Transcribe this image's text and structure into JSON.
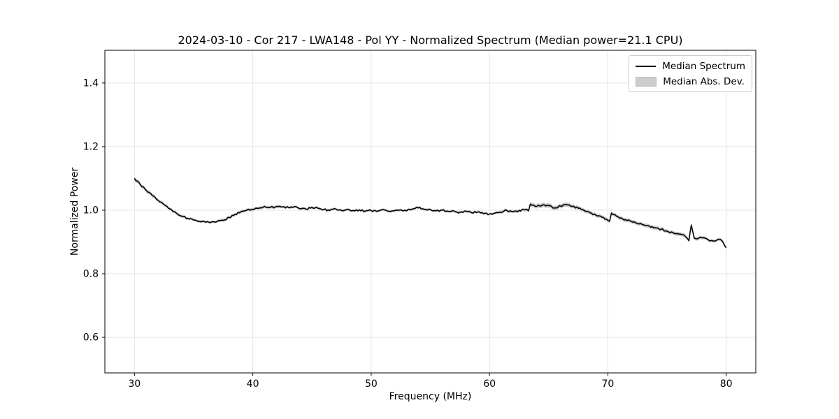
{
  "chart_data": {
    "type": "line",
    "title": "2024-03-10 - Cor 217 - LWA148 - Pol YY - Normalized Spectrum (Median power=21.1 CPU)",
    "xlabel": "Frequency (MHz)",
    "ylabel": "Normalized Power",
    "xlim": [
      27.5,
      82.5
    ],
    "ylim": [
      0.488,
      1.503
    ],
    "grid": true,
    "grid_color": "#e5e5e5",
    "legend_location": "upper right",
    "xticks": {
      "values": [
        30,
        40,
        50,
        60,
        70,
        80
      ],
      "labels": [
        "30",
        "40",
        "50",
        "60",
        "70",
        "80"
      ]
    },
    "yticks": {
      "values": [
        0.6,
        0.8,
        1.0,
        1.2,
        1.4
      ],
      "labels": [
        "0.6",
        "0.8",
        "1.0",
        "1.2",
        "1.4"
      ]
    },
    "noise_amplitude": 0.0028,
    "series": [
      {
        "name": "Median Spectrum",
        "kind": "line",
        "color": "#000000",
        "x": [
          30,
          30.5,
          31,
          31.5,
          32,
          32.5,
          33,
          33.5,
          34,
          34.5,
          35,
          35.5,
          36,
          36.5,
          37,
          37.5,
          38,
          38.5,
          39,
          39.5,
          40,
          40.5,
          41,
          41.5,
          42,
          42.5,
          43,
          43.5,
          44,
          44.5,
          45,
          45.5,
          46,
          46.5,
          47,
          47.5,
          48,
          48.5,
          49,
          49.5,
          50,
          50.5,
          51,
          51.5,
          52,
          52.5,
          53,
          53.5,
          54.1,
          54.5,
          55,
          55.5,
          56,
          56.5,
          57,
          57.5,
          58,
          58.5,
          59,
          59.5,
          60,
          60.5,
          61,
          61.3,
          61.6,
          62,
          62.5,
          63,
          63.3,
          63.45,
          64,
          64.5,
          65,
          65.5,
          66,
          66.5,
          67,
          67.5,
          68,
          68.5,
          69,
          69.5,
          70,
          70.15,
          70.3,
          70.5,
          71,
          71.5,
          72,
          72.5,
          73,
          73.5,
          74,
          74.5,
          75,
          75.5,
          76,
          76.5,
          76.85,
          77.05,
          77.3,
          77.5,
          78,
          78.5,
          79,
          79.5,
          79.75,
          80
        ],
        "y": [
          1.1,
          1.08,
          1.062,
          1.046,
          1.031,
          1.017,
          1.004,
          0.992,
          0.981,
          0.974,
          0.969,
          0.965,
          0.962,
          0.963,
          0.965,
          0.968,
          0.977,
          0.987,
          0.995,
          1.0,
          1.002,
          1.006,
          1.012,
          1.009,
          1.011,
          1.01,
          1.009,
          1.011,
          1.004,
          1.003,
          1.009,
          1.006,
          1.002,
          0.999,
          1.004,
          0.999,
          1.002,
          0.999,
          1.001,
          0.997,
          0.999,
          0.996,
          1.002,
          0.997,
          0.999,
          1.001,
          0.998,
          1.004,
          1.009,
          1.002,
          1.002,
          0.998,
          1.0,
          0.996,
          0.997,
          0.993,
          0.997,
          0.992,
          0.994,
          0.989,
          0.988,
          0.991,
          0.993,
          1.0,
          0.995,
          0.996,
          0.999,
          1.001,
          0.998,
          1.019,
          1.012,
          1.017,
          1.014,
          1.007,
          1.013,
          1.018,
          1.012,
          1.006,
          0.999,
          0.992,
          0.984,
          0.978,
          0.968,
          0.965,
          0.991,
          0.986,
          0.975,
          0.97,
          0.964,
          0.958,
          0.954,
          0.95,
          0.945,
          0.94,
          0.934,
          0.929,
          0.925,
          0.919,
          0.904,
          0.953,
          0.912,
          0.91,
          0.913,
          0.906,
          0.903,
          0.908,
          0.898,
          0.882
        ]
      },
      {
        "name": "Median Abs. Dev.",
        "kind": "band",
        "color": "#cccccc",
        "half_width": [
          0.007,
          0.006,
          0.006,
          0.006,
          0.005,
          0.005,
          0.005,
          0.005,
          0.005,
          0.004,
          0.004,
          0.004,
          0.004,
          0.004,
          0.004,
          0.005,
          0.005,
          0.005,
          0.005,
          0.005,
          0.005,
          0.005,
          0.005,
          0.005,
          0.005,
          0.004,
          0.004,
          0.004,
          0.004,
          0.004,
          0.004,
          0.004,
          0.004,
          0.004,
          0.004,
          0.004,
          0.004,
          0.004,
          0.004,
          0.004,
          0.004,
          0.004,
          0.004,
          0.004,
          0.004,
          0.004,
          0.004,
          0.004,
          0.004,
          0.004,
          0.004,
          0.004,
          0.004,
          0.004,
          0.004,
          0.004,
          0.004,
          0.004,
          0.004,
          0.004,
          0.004,
          0.004,
          0.005,
          0.005,
          0.005,
          0.005,
          0.005,
          0.005,
          0.005,
          0.007,
          0.007,
          0.007,
          0.007,
          0.007,
          0.007,
          0.007,
          0.006,
          0.006,
          0.006,
          0.006,
          0.006,
          0.006,
          0.006,
          0.006,
          0.006,
          0.006,
          0.006,
          0.006,
          0.006,
          0.006,
          0.006,
          0.006,
          0.006,
          0.006,
          0.006,
          0.006,
          0.006,
          0.006,
          0.006,
          0.007,
          0.006,
          0.006,
          0.005,
          0.005,
          0.005,
          0.005,
          0.005,
          0.005
        ]
      }
    ]
  }
}
